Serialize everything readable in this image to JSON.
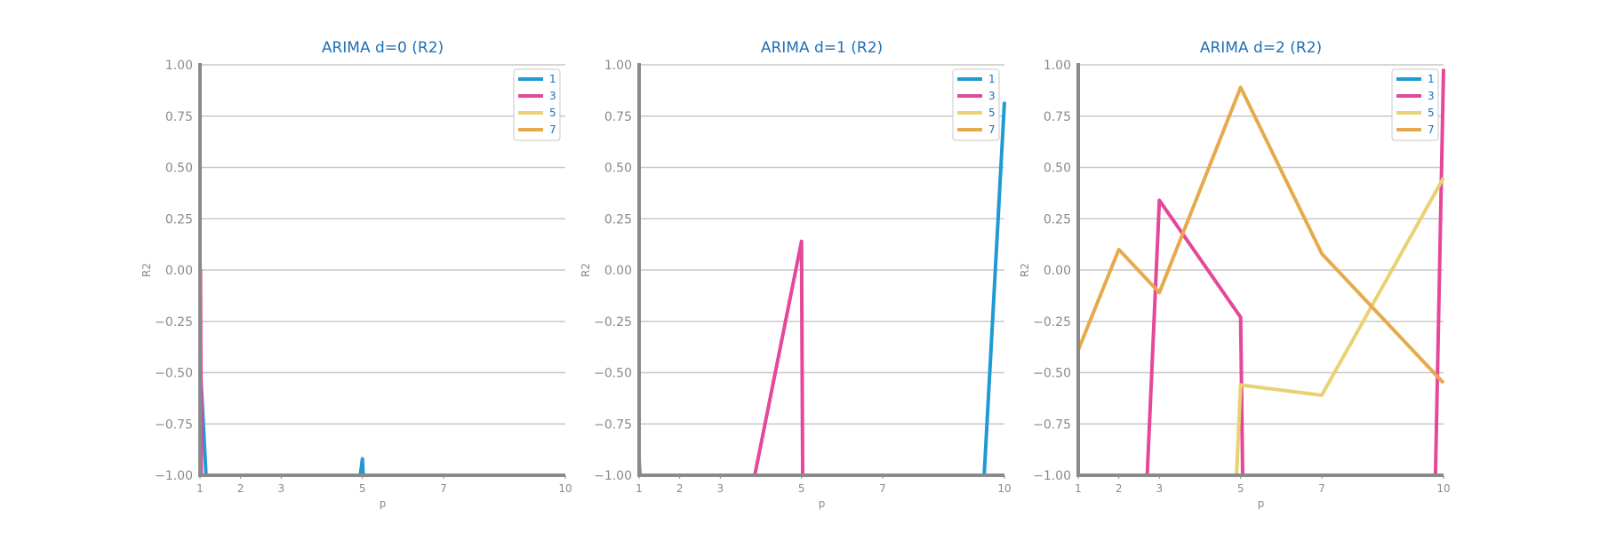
{
  "chart_data": [
    {
      "type": "line",
      "title": "ARIMA d=0 (R2)",
      "xlabel": "p",
      "ylabel": "R2",
      "xlim": [
        1,
        10
      ],
      "ylim": [
        -1.0,
        1.0
      ],
      "xticks": [
        "1",
        "2",
        "3",
        "5",
        "7",
        "10"
      ],
      "yticks": [
        "1.00",
        "0.75",
        "0.50",
        "0.25",
        "0.00",
        "−0.25",
        "−0.50",
        "−0.75",
        "−1.00"
      ],
      "grid": true,
      "legend": "top-right",
      "series": [
        {
          "name": "1",
          "color": "#1f9ad4",
          "points": [
            [
              1,
              -0.45
            ],
            [
              1.15,
              -1.0
            ],
            [
              4.95,
              -1.0
            ],
            [
              5,
              -0.92
            ],
            [
              5.02,
              -1.0
            ],
            [
              10,
              -1.0
            ]
          ]
        },
        {
          "name": "3",
          "color": "#e5479b",
          "points": [
            [
              1,
              -1.0
            ],
            [
              1.01,
              0.0
            ],
            [
              1.03,
              -1.0
            ],
            [
              10,
              -1.0
            ]
          ]
        },
        {
          "name": "5",
          "color": "#ead173",
          "points": [
            [
              1,
              -1.0
            ],
            [
              10,
              -1.0
            ]
          ]
        },
        {
          "name": "7",
          "color": "#e6aa4d",
          "points": [
            [
              1,
              -1.0
            ],
            [
              10,
              -1.0
            ]
          ]
        }
      ]
    },
    {
      "type": "line",
      "title": "ARIMA d=1 (R2)",
      "xlabel": "p",
      "ylabel": "R2",
      "xlim": [
        1,
        10
      ],
      "ylim": [
        -1.0,
        1.0
      ],
      "xticks": [
        "1",
        "2",
        "3",
        "5",
        "7",
        "10"
      ],
      "yticks": [
        "1.00",
        "0.75",
        "0.50",
        "0.25",
        "0.00",
        "−0.25",
        "−0.50",
        "−0.75",
        "−1.00"
      ],
      "grid": true,
      "legend": "top-right",
      "series": [
        {
          "name": "1",
          "color": "#1f9ad4",
          "points": [
            [
              1,
              -0.92
            ],
            [
              1.02,
              -1.0
            ],
            [
              9.5,
              -1.0
            ],
            [
              10,
              0.82
            ]
          ]
        },
        {
          "name": "3",
          "color": "#e5479b",
          "points": [
            [
              1,
              -1.0
            ],
            [
              3.85,
              -1.0
            ],
            [
              5,
              0.14
            ],
            [
              5.03,
              -1.0
            ],
            [
              10,
              -1.0
            ]
          ]
        },
        {
          "name": "5",
          "color": "#ead173",
          "points": [
            [
              1,
              -1.0
            ],
            [
              10,
              -1.0
            ]
          ]
        },
        {
          "name": "7",
          "color": "#e6aa4d",
          "points": [
            [
              1,
              -1.0
            ],
            [
              10,
              -1.0
            ]
          ]
        }
      ]
    },
    {
      "type": "line",
      "title": "ARIMA d=2 (R2)",
      "xlabel": "p",
      "ylabel": "R2",
      "xlim": [
        1,
        10
      ],
      "ylim": [
        -1.0,
        1.0
      ],
      "xticks": [
        "1",
        "2",
        "3",
        "5",
        "7",
        "10"
      ],
      "yticks": [
        "1.00",
        "0.75",
        "0.50",
        "0.25",
        "0.00",
        "−0.25",
        "−0.50",
        "−0.75",
        "−1.00"
      ],
      "grid": true,
      "legend": "top-right",
      "series": [
        {
          "name": "1",
          "color": "#1f9ad4",
          "points": [
            [
              1,
              -1.0
            ],
            [
              10,
              -1.0
            ]
          ]
        },
        {
          "name": "3",
          "color": "#e5479b",
          "points": [
            [
              2.7,
              -1.0
            ],
            [
              3,
              0.34
            ],
            [
              5,
              -0.23
            ],
            [
              5.05,
              -1.0
            ],
            [
              9.8,
              -1.0
            ],
            [
              10,
              0.98
            ]
          ]
        },
        {
          "name": "5",
          "color": "#ead173",
          "points": [
            [
              4.9,
              -1.0
            ],
            [
              5,
              -0.56
            ],
            [
              7,
              -0.61
            ],
            [
              10,
              0.45
            ]
          ]
        },
        {
          "name": "7",
          "color": "#e6aa4d",
          "points": [
            [
              1,
              -0.39
            ],
            [
              2,
              0.1
            ],
            [
              3,
              -0.11
            ],
            [
              5,
              0.89
            ],
            [
              7,
              0.08
            ],
            [
              10,
              -0.55
            ]
          ]
        }
      ]
    }
  ]
}
